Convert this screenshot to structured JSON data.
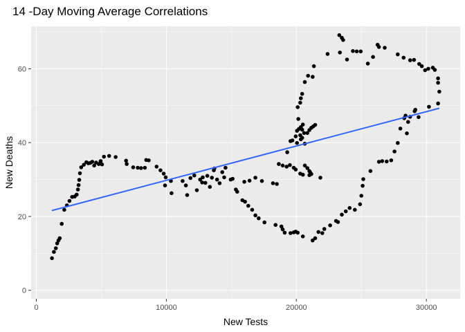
{
  "chart_data": {
    "type": "scatter",
    "title": "14 -Day Moving Average Correlations",
    "xlabel": "New Tests",
    "ylabel": "New Deaths",
    "xlim": [
      -400,
      32600
    ],
    "ylim": [
      -2.3,
      71.5
    ],
    "x_ticks": [
      0,
      10000,
      20000,
      30000
    ],
    "x_tick_labels": [
      "0",
      "10000",
      "20000",
      "30000"
    ],
    "y_ticks": [
      0,
      20,
      40,
      60
    ],
    "y_tick_labels": [
      "0",
      "20",
      "40",
      "60"
    ],
    "grid": true,
    "legend": "none",
    "colors": {
      "panel": "#EBEBEB",
      "grid": "#FFFFFF",
      "points": "#000000",
      "trend": "#3366FF"
    },
    "series": [
      {
        "kind": "points",
        "points": [
          [
            1200,
            8.7
          ],
          [
            1350,
            10.4
          ],
          [
            1500,
            11.4
          ],
          [
            1600,
            12.7
          ],
          [
            1700,
            13.5
          ],
          [
            1800,
            14.1
          ],
          [
            1950,
            18.0
          ],
          [
            2150,
            21.8
          ],
          [
            2350,
            23.0
          ],
          [
            2550,
            24.2
          ],
          [
            2750,
            25.3
          ],
          [
            2950,
            25.4
          ],
          [
            3100,
            25.9
          ],
          [
            3200,
            27.3
          ],
          [
            3250,
            28.5
          ],
          [
            3300,
            29.9
          ],
          [
            3350,
            31.7
          ],
          [
            3450,
            33.3
          ],
          [
            3650,
            34.0
          ],
          [
            3850,
            34.7
          ],
          [
            4000,
            34.4
          ],
          [
            4150,
            34.5
          ],
          [
            4300,
            34.8
          ],
          [
            4450,
            33.8
          ],
          [
            4600,
            34.6
          ],
          [
            4800,
            34.2
          ],
          [
            4950,
            35.0
          ],
          [
            5050,
            34.1
          ],
          [
            5200,
            36.2
          ],
          [
            5600,
            36.4
          ],
          [
            6100,
            36.1
          ],
          [
            6900,
            35.1
          ],
          [
            6950,
            34.2
          ],
          [
            7450,
            33.3
          ],
          [
            7800,
            33.2
          ],
          [
            8050,
            33.1
          ],
          [
            8350,
            33.2
          ],
          [
            8450,
            35.3
          ],
          [
            8650,
            35.2
          ],
          [
            9250,
            33.5
          ],
          [
            9550,
            32.5
          ],
          [
            9800,
            31.6
          ],
          [
            9950,
            30.6
          ],
          [
            9900,
            28.4
          ],
          [
            10350,
            29.6
          ],
          [
            10400,
            26.3
          ],
          [
            11250,
            29.6
          ],
          [
            11500,
            28.4
          ],
          [
            11600,
            25.8
          ],
          [
            11850,
            30.4
          ],
          [
            12150,
            31.1
          ],
          [
            12350,
            27.1
          ],
          [
            12600,
            30.0
          ],
          [
            12750,
            29.2
          ],
          [
            12800,
            30.6
          ],
          [
            13000,
            29.1
          ],
          [
            13150,
            31.0
          ],
          [
            13350,
            28.0
          ],
          [
            13500,
            30.5
          ],
          [
            13650,
            32.5
          ],
          [
            13700,
            33.0
          ],
          [
            13900,
            30.0
          ],
          [
            14100,
            29.0
          ],
          [
            14300,
            32.0
          ],
          [
            14450,
            30.6
          ],
          [
            14550,
            33.2
          ],
          [
            14950,
            30.0
          ],
          [
            15100,
            30.2
          ],
          [
            15350,
            27.3
          ],
          [
            15450,
            26.7
          ],
          [
            15850,
            24.4
          ],
          [
            16050,
            24.0
          ],
          [
            16300,
            22.9
          ],
          [
            16600,
            21.8
          ],
          [
            16850,
            20.3
          ],
          [
            17100,
            19.5
          ],
          [
            17550,
            18.4
          ],
          [
            18400,
            17.7
          ],
          [
            18850,
            17.3
          ],
          [
            18950,
            16.5
          ],
          [
            19100,
            15.6
          ],
          [
            19550,
            15.5
          ],
          [
            19800,
            15.7
          ],
          [
            19950,
            15.9
          ],
          [
            20100,
            15.6
          ],
          [
            20500,
            14.6
          ],
          [
            21250,
            13.5
          ],
          [
            21450,
            14.1
          ],
          [
            21700,
            15.8
          ],
          [
            22000,
            15.5
          ],
          [
            22150,
            16.6
          ],
          [
            22600,
            17.6
          ],
          [
            23050,
            18.8
          ],
          [
            23200,
            18.5
          ],
          [
            23500,
            20.5
          ],
          [
            23800,
            21.4
          ],
          [
            24100,
            22.3
          ],
          [
            24500,
            21.8
          ],
          [
            24900,
            23.3
          ],
          [
            25000,
            25.6
          ],
          [
            25100,
            28.3
          ],
          [
            25150,
            30.1
          ],
          [
            25700,
            32.3
          ],
          [
            26350,
            34.8
          ],
          [
            26600,
            35.0
          ],
          [
            26950,
            34.9
          ],
          [
            27300,
            35.2
          ],
          [
            27550,
            37.6
          ],
          [
            27800,
            39.9
          ],
          [
            28000,
            43.8
          ],
          [
            28300,
            46.6
          ],
          [
            28400,
            47.3
          ],
          [
            28500,
            42.5
          ],
          [
            28600,
            45.6
          ],
          [
            28750,
            47.0
          ],
          [
            29100,
            48.5
          ],
          [
            29150,
            48.9
          ],
          [
            29400,
            46.9
          ],
          [
            30200,
            49.7
          ],
          [
            30900,
            50.6
          ],
          [
            31000,
            53.8
          ],
          [
            30900,
            56.2
          ],
          [
            30900,
            57.4
          ],
          [
            30650,
            59.7
          ],
          [
            30500,
            60.3
          ],
          [
            30150,
            60.0
          ],
          [
            29900,
            59.6
          ],
          [
            29650,
            60.7
          ],
          [
            29450,
            61.3
          ],
          [
            29050,
            62.4
          ],
          [
            28750,
            62.3
          ],
          [
            28250,
            63.0
          ],
          [
            27800,
            63.9
          ],
          [
            26800,
            65.7
          ],
          [
            26350,
            65.9
          ],
          [
            26250,
            66.5
          ],
          [
            25900,
            63.2
          ],
          [
            25500,
            61.4
          ],
          [
            24950,
            64.7
          ],
          [
            24650,
            64.7
          ],
          [
            24350,
            64.8
          ],
          [
            23900,
            62.5
          ],
          [
            23600,
            67.8
          ],
          [
            23500,
            68.4
          ],
          [
            23300,
            69.1
          ],
          [
            23350,
            64.4
          ],
          [
            22400,
            64.0
          ],
          [
            21350,
            60.7
          ],
          [
            21250,
            57.8
          ],
          [
            20900,
            58.1
          ],
          [
            20650,
            56.4
          ],
          [
            20450,
            53.2
          ],
          [
            20350,
            52.0
          ],
          [
            20100,
            49.6
          ],
          [
            20300,
            50.8
          ],
          [
            20150,
            46.4
          ],
          [
            20050,
            43.2
          ],
          [
            20200,
            43.7
          ],
          [
            20350,
            44.2
          ],
          [
            20500,
            44.9
          ],
          [
            20450,
            43.5
          ],
          [
            20300,
            42.0
          ],
          [
            20450,
            41.3
          ],
          [
            20600,
            42.6
          ],
          [
            20850,
            42.6
          ],
          [
            21000,
            43.4
          ],
          [
            21150,
            44.0
          ],
          [
            21300,
            44.4
          ],
          [
            21450,
            44.8
          ],
          [
            20650,
            39.7
          ],
          [
            20050,
            39.9
          ],
          [
            20350,
            40.9
          ],
          [
            19950,
            41.7
          ],
          [
            19700,
            40.6
          ],
          [
            19550,
            40.4
          ],
          [
            19300,
            37.4
          ],
          [
            18650,
            34.2
          ],
          [
            18950,
            33.8
          ],
          [
            19250,
            33.5
          ],
          [
            19500,
            33.9
          ],
          [
            19800,
            33.2
          ],
          [
            19950,
            32.7
          ],
          [
            20300,
            31.6
          ],
          [
            20500,
            31.3
          ],
          [
            20650,
            33.8
          ],
          [
            20850,
            33.1
          ],
          [
            21000,
            32.3
          ],
          [
            21050,
            32.0
          ],
          [
            21150,
            31.5
          ],
          [
            21000,
            31.2
          ],
          [
            21850,
            30.5
          ],
          [
            18200,
            29.0
          ],
          [
            18500,
            28.8
          ],
          [
            17350,
            29.6
          ],
          [
            16850,
            30.5
          ],
          [
            16400,
            29.7
          ],
          [
            16000,
            29.4
          ]
        ]
      },
      {
        "kind": "line",
        "method": "linear trend",
        "points": [
          [
            1200,
            21.6
          ],
          [
            31000,
            49.3
          ]
        ]
      }
    ]
  }
}
